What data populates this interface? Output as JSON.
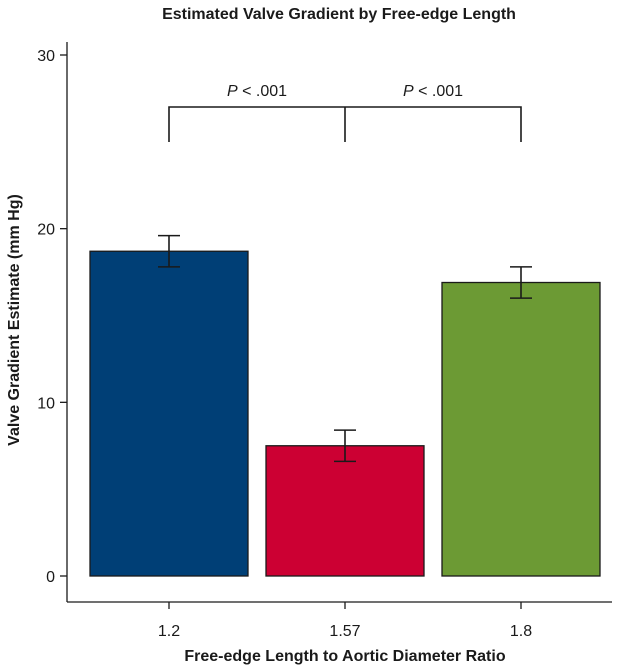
{
  "chart_data": {
    "type": "bar",
    "title": "Estimated Valve Gradient by Free-edge Length",
    "xlabel": "Free-edge Length to Aortic Diameter Ratio",
    "ylabel": "Valve Gradient Estimate (mm Hg)",
    "ylim": [
      0,
      30
    ],
    "yticks": [
      "0",
      "10",
      "20",
      "30"
    ],
    "categories": [
      "1.2",
      "1.57",
      "1.8"
    ],
    "values": [
      18.7,
      7.5,
      16.9
    ],
    "error_low": [
      17.8,
      6.6,
      16.0
    ],
    "error_high": [
      19.6,
      8.4,
      17.8
    ],
    "colors": [
      "#003f76",
      "#cc0033",
      "#6c9a34"
    ],
    "annotations": [
      {
        "italic": "P",
        "text": " < .001",
        "from": 0,
        "to": 1
      },
      {
        "italic": "P",
        "text": " < .001",
        "from": 1,
        "to": 2
      }
    ],
    "grid": false
  }
}
